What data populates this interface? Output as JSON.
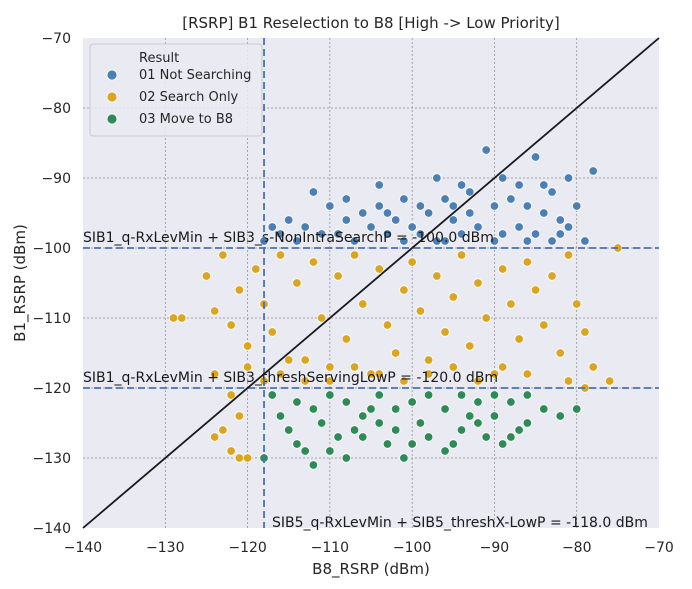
{
  "chart_data": {
    "type": "scatter",
    "title": "[RSRP] B1 Reselection to B8 [High -> Low Priority]",
    "xlabel": "B8_RSRP (dBm)",
    "ylabel": "B1_RSRP (dBm)",
    "xlim": [
      -140,
      -70
    ],
    "ylim": [
      -140,
      -70
    ],
    "x_ticks": [
      -140,
      -130,
      -120,
      -110,
      -100,
      -90,
      -80,
      -70
    ],
    "y_ticks": [
      -140,
      -130,
      -120,
      -110,
      -100,
      -90,
      -80,
      -70
    ],
    "x_tick_labels": [
      "−140",
      "−130",
      "−120",
      "−110",
      "−100",
      "−90",
      "−80",
      "−70"
    ],
    "y_tick_labels": [
      "−140",
      "−130",
      "−120",
      "−110",
      "−100",
      "−90",
      "−80",
      "−70"
    ],
    "grid": true,
    "legend": {
      "title": "Result",
      "placement": "top-left",
      "entries": [
        "01 Not Searching",
        "02 Search Only",
        "03 Move to B8"
      ]
    },
    "colors": {
      "background": "#eaeaf2",
      "not_searching": "#4c7fb3",
      "search_only": "#daa520",
      "move_to_b8": "#2e8b57",
      "reference_lines": "#4c72b0",
      "diagonal": "#1a1a1a"
    },
    "reference_lines": [
      {
        "orientation": "horizontal",
        "value": -100,
        "label": "SIB1_q-RxLevMin + SIB3_s-NonIntraSearchP = -100.0 dBm"
      },
      {
        "orientation": "horizontal",
        "value": -120,
        "label": "SIB1_q-RxLevMin + SIB3_threshServingLowP = -120.0 dBm"
      },
      {
        "orientation": "vertical",
        "value": -118,
        "label": "SIB5_q-RxLevMin + SIB5_threshX-LowP = -118.0 dBm"
      }
    ],
    "diagonal": {
      "from": [
        -140,
        -140
      ],
      "to": [
        -70,
        -70
      ]
    },
    "series": [
      {
        "name": "01 Not Searching",
        "points": [
          [
            -91,
            -86
          ],
          [
            -85,
            -87
          ],
          [
            -78,
            -89
          ],
          [
            -81,
            -90
          ],
          [
            -97,
            -90
          ],
          [
            -104,
            -91
          ],
          [
            -112,
            -92
          ],
          [
            -87,
            -91
          ],
          [
            -93,
            -92
          ],
          [
            -96,
            -93
          ],
          [
            -99,
            -94
          ],
          [
            -101,
            -93
          ],
          [
            -103,
            -95
          ],
          [
            -106,
            -95
          ],
          [
            -108,
            -96
          ],
          [
            -110,
            -94
          ],
          [
            -113,
            -97
          ],
          [
            -115,
            -96
          ],
          [
            -117,
            -97
          ],
          [
            -109,
            -98
          ],
          [
            -105,
            -97
          ],
          [
            -102,
            -96
          ],
          [
            -100,
            -97
          ],
          [
            -98,
            -95
          ],
          [
            -95,
            -96
          ],
          [
            -93,
            -95
          ],
          [
            -90,
            -94
          ],
          [
            -88,
            -93
          ],
          [
            -86,
            -94
          ],
          [
            -84,
            -95
          ],
          [
            -83,
            -92
          ],
          [
            -82,
            -96
          ],
          [
            -81,
            -97
          ],
          [
            -80,
            -94
          ],
          [
            -79,
            -99
          ],
          [
            -85,
            -98
          ],
          [
            -87,
            -97
          ],
          [
            -89,
            -98
          ],
          [
            -92,
            -97
          ],
          [
            -94,
            -98
          ],
          [
            -96,
            -99
          ],
          [
            -99,
            -98
          ],
          [
            -101,
            -99
          ],
          [
            -103,
            -98
          ],
          [
            -107,
            -99
          ],
          [
            -111,
            -98
          ],
          [
            -114,
            -99
          ],
          [
            -116,
            -98
          ],
          [
            -118,
            -99
          ],
          [
            -108,
            -93
          ],
          [
            -104,
            -94
          ],
          [
            -94,
            -91
          ],
          [
            -89,
            -90
          ],
          [
            -84,
            -91
          ],
          [
            -82,
            -98
          ],
          [
            -83,
            -99
          ],
          [
            -86,
            -99
          ],
          [
            -90,
            -99
          ],
          [
            -95,
            -94
          ],
          [
            -97,
            -99
          ]
        ]
      },
      {
        "name": "02 Search Only",
        "points": [
          [
            -129,
            -110
          ],
          [
            -128,
            -110
          ],
          [
            -125,
            -104
          ],
          [
            -124,
            -109
          ],
          [
            -123,
            -101
          ],
          [
            -122,
            -111
          ],
          [
            -121,
            -106
          ],
          [
            -120,
            -114
          ],
          [
            -119,
            -103
          ],
          [
            -118,
            -108
          ],
          [
            -117,
            -112
          ],
          [
            -116,
            -101
          ],
          [
            -115,
            -116
          ],
          [
            -114,
            -105
          ],
          [
            -113,
            -119
          ],
          [
            -112,
            -102
          ],
          [
            -111,
            -110
          ],
          [
            -110,
            -117
          ],
          [
            -109,
            -104
          ],
          [
            -108,
            -113
          ],
          [
            -107,
            -101
          ],
          [
            -106,
            -108
          ],
          [
            -105,
            -118
          ],
          [
            -104,
            -103
          ],
          [
            -103,
            -111
          ],
          [
            -102,
            -115
          ],
          [
            -101,
            -106
          ],
          [
            -100,
            -102
          ],
          [
            -99,
            -109
          ],
          [
            -98,
            -116
          ],
          [
            -97,
            -104
          ],
          [
            -96,
            -112
          ],
          [
            -95,
            -107
          ],
          [
            -94,
            -101
          ],
          [
            -93,
            -114
          ],
          [
            -92,
            -105
          ],
          [
            -91,
            -110
          ],
          [
            -90,
            -118
          ],
          [
            -89,
            -103
          ],
          [
            -88,
            -108
          ],
          [
            -87,
            -113
          ],
          [
            -86,
            -102
          ],
          [
            -85,
            -106
          ],
          [
            -84,
            -111
          ],
          [
            -83,
            -104
          ],
          [
            -82,
            -115
          ],
          [
            -81,
            -101
          ],
          [
            -80,
            -108
          ],
          [
            -79,
            -112
          ],
          [
            -78,
            -117
          ],
          [
            -76,
            -119
          ],
          [
            -75,
            -100
          ],
          [
            -79,
            -120
          ],
          [
            -81,
            -119
          ],
          [
            -120,
            -117
          ],
          [
            -118,
            -119
          ],
          [
            -116,
            -118
          ],
          [
            -113,
            -116
          ],
          [
            -110,
            -119
          ],
          [
            -107,
            -117
          ],
          [
            -104,
            -118
          ],
          [
            -101,
            -119
          ],
          [
            -98,
            -118
          ],
          [
            -95,
            -117
          ],
          [
            -92,
            -119
          ],
          [
            -89,
            -117
          ],
          [
            -86,
            -118
          ],
          [
            -124,
            -118
          ],
          [
            -122,
            -121
          ],
          [
            -121,
            -124
          ],
          [
            -123,
            -126
          ],
          [
            -122,
            -129
          ],
          [
            -121,
            -130
          ],
          [
            -120,
            -130
          ],
          [
            -124,
            -127
          ]
        ]
      },
      {
        "name": "03 Move to B8",
        "points": [
          [
            -118,
            -130
          ],
          [
            -114,
            -128
          ],
          [
            -112,
            -131
          ],
          [
            -110,
            -129
          ],
          [
            -108,
            -130
          ],
          [
            -106,
            -127
          ],
          [
            -104,
            -125
          ],
          [
            -102,
            -126
          ],
          [
            -100,
            -128
          ],
          [
            -98,
            -127
          ],
          [
            -96,
            -129
          ],
          [
            -94,
            -126
          ],
          [
            -92,
            -125
          ],
          [
            -90,
            -124
          ],
          [
            -88,
            -127
          ],
          [
            -86,
            -125
          ],
          [
            -84,
            -123
          ],
          [
            -82,
            -124
          ],
          [
            -80,
            -123
          ],
          [
            -116,
            -124
          ],
          [
            -114,
            -122
          ],
          [
            -112,
            -123
          ],
          [
            -110,
            -121
          ],
          [
            -108,
            -122
          ],
          [
            -106,
            -124
          ],
          [
            -104,
            -121
          ],
          [
            -102,
            -123
          ],
          [
            -100,
            -122
          ],
          [
            -98,
            -121
          ],
          [
            -96,
            -123
          ],
          [
            -94,
            -121
          ],
          [
            -92,
            -122
          ],
          [
            -90,
            -121
          ],
          [
            -88,
            -122
          ],
          [
            -86,
            -121
          ],
          [
            -117,
            -121
          ],
          [
            -115,
            -126
          ],
          [
            -111,
            -125
          ],
          [
            -107,
            -126
          ],
          [
            -103,
            -128
          ],
          [
            -99,
            -125
          ],
          [
            -95,
            -128
          ],
          [
            -91,
            -127
          ],
          [
            -87,
            -126
          ],
          [
            -105,
            -123
          ],
          [
            -109,
            -127
          ],
          [
            -113,
            -129
          ],
          [
            -101,
            -130
          ],
          [
            -93,
            -124
          ],
          [
            -89,
            -128
          ]
        ]
      }
    ]
  }
}
